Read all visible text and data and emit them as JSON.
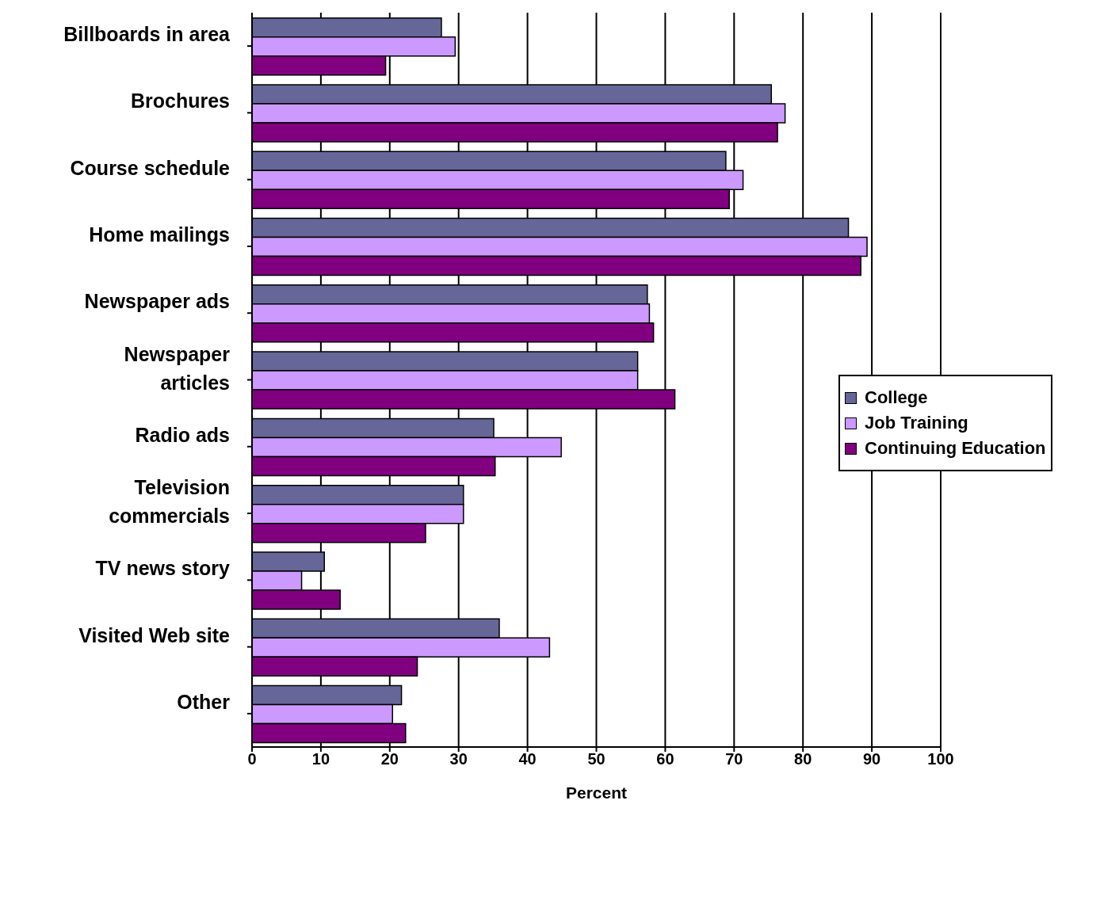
{
  "chart_data": {
    "type": "bar",
    "orientation": "horizontal",
    "xlabel": "Percent",
    "categories": [
      "Billboards in area",
      "Brochures",
      "Course schedule",
      "Home mailings",
      "Newspaper ads",
      "Newspaper\narticles",
      "Radio ads",
      "Television\ncommercials",
      "TV news story",
      "Visited Web site",
      "Other"
    ],
    "series": [
      {
        "name": "College",
        "color": "#666699",
        "values": [
          27.5,
          75.4,
          68.8,
          86.6,
          57.4,
          56.0,
          35.1,
          30.7,
          10.5,
          35.9,
          21.7
        ]
      },
      {
        "name": "Job Training",
        "color": "#cc99ff",
        "values": [
          29.5,
          77.4,
          71.3,
          89.3,
          57.7,
          56.0,
          44.9,
          30.7,
          7.2,
          43.2,
          20.4
        ]
      },
      {
        "name": "Continuing Education",
        "color": "#800080",
        "values": [
          19.4,
          76.3,
          69.3,
          88.4,
          58.3,
          61.4,
          35.3,
          25.2,
          12.8,
          24.0,
          22.3
        ]
      }
    ],
    "xlim": [
      0,
      100
    ],
    "xticks": [
      0,
      10,
      20,
      30,
      40,
      50,
      60,
      70,
      80,
      90,
      100
    ],
    "grid": "x",
    "legend": "right"
  }
}
